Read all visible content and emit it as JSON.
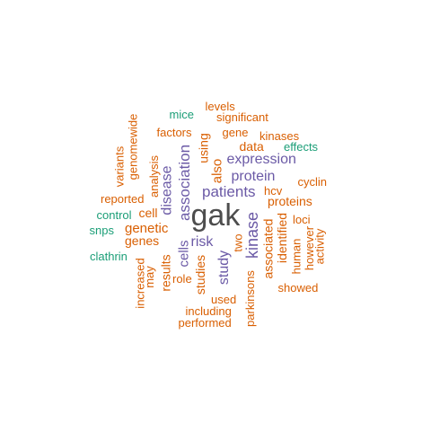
{
  "palette": {
    "top": "#4d4d4d",
    "high": "#6b5aa6",
    "mid": "#d95f02",
    "low": "#1b9e77"
  },
  "words": [
    {
      "text": "gak",
      "tier": "top"
    },
    {
      "text": "patients",
      "tier": "high"
    },
    {
      "text": "expression",
      "tier": "high"
    },
    {
      "text": "protein",
      "tier": "high"
    },
    {
      "text": "association",
      "tier": "high"
    },
    {
      "text": "disease",
      "tier": "high"
    },
    {
      "text": "risk",
      "tier": "high"
    },
    {
      "text": "study",
      "tier": "high"
    },
    {
      "text": "kinase",
      "tier": "high"
    },
    {
      "text": "cells",
      "tier": "high"
    },
    {
      "text": "genetic",
      "tier": "mid"
    },
    {
      "text": "genes",
      "tier": "mid"
    },
    {
      "text": "cell",
      "tier": "mid"
    },
    {
      "text": "proteins",
      "tier": "mid"
    },
    {
      "text": "hcv",
      "tier": "mid"
    },
    {
      "text": "levels",
      "tier": "mid"
    },
    {
      "text": "significant",
      "tier": "mid"
    },
    {
      "text": "gene",
      "tier": "mid"
    },
    {
      "text": "kinases",
      "tier": "mid"
    },
    {
      "text": "factors",
      "tier": "mid"
    },
    {
      "text": "data",
      "tier": "mid"
    },
    {
      "text": "cyclin",
      "tier": "mid"
    },
    {
      "text": "reported",
      "tier": "mid"
    },
    {
      "text": "loci",
      "tier": "mid"
    },
    {
      "text": "role",
      "tier": "mid"
    },
    {
      "text": "used",
      "tier": "mid"
    },
    {
      "text": "including",
      "tier": "mid"
    },
    {
      "text": "performed",
      "tier": "mid"
    },
    {
      "text": "showed",
      "tier": "mid"
    },
    {
      "text": "genomewide",
      "tier": "mid"
    },
    {
      "text": "variants",
      "tier": "mid"
    },
    {
      "text": "analysis",
      "tier": "mid"
    },
    {
      "text": "using",
      "tier": "mid"
    },
    {
      "text": "also",
      "tier": "mid"
    },
    {
      "text": "two",
      "tier": "mid"
    },
    {
      "text": "associated",
      "tier": "mid"
    },
    {
      "text": "identified",
      "tier": "mid"
    },
    {
      "text": "human",
      "tier": "mid"
    },
    {
      "text": "however",
      "tier": "mid"
    },
    {
      "text": "activity",
      "tier": "mid"
    },
    {
      "text": "increased",
      "tier": "mid"
    },
    {
      "text": "may",
      "tier": "mid"
    },
    {
      "text": "results",
      "tier": "mid"
    },
    {
      "text": "studies",
      "tier": "mid"
    },
    {
      "text": "parkinsons",
      "tier": "mid"
    },
    {
      "text": "mice",
      "tier": "low"
    },
    {
      "text": "effects",
      "tier": "low"
    },
    {
      "text": "control",
      "tier": "low"
    },
    {
      "text": "snps",
      "tier": "low"
    },
    {
      "text": "clathrin",
      "tier": "low"
    }
  ]
}
